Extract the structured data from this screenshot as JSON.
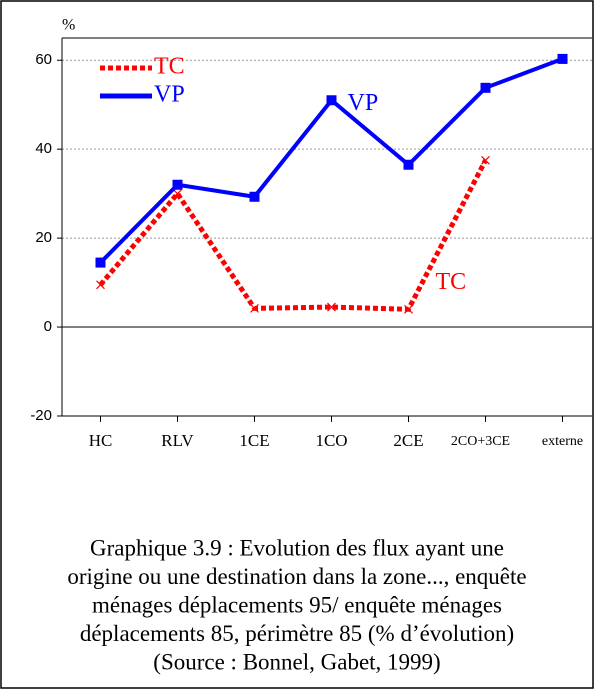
{
  "chart_data": {
    "type": "line",
    "y_label": "%",
    "categories": [
      "HC",
      "RLV",
      "1CE",
      "1CO",
      "2CE",
      "2CO+3CE",
      "externe"
    ],
    "series": [
      {
        "name": "TC",
        "color": "#ff0000",
        "values": [
          9.5,
          30,
          4.2,
          4.5,
          4.0,
          37.5,
          null
        ]
      },
      {
        "name": "VP",
        "color": "#0000ff",
        "values": [
          14.5,
          32,
          29.3,
          51,
          36.5,
          53.8,
          60.3
        ]
      }
    ],
    "annotations": [
      "VP",
      "TC"
    ],
    "ylim": [
      -20,
      65
    ],
    "yticks": [
      -20,
      0,
      20,
      40,
      60
    ],
    "grid": true,
    "caption": [
      "Graphique 3.9 : Evolution des flux ayant une",
      "origine ou une destination dans la zone..., enquête",
      "ménages déplacements 95/ enquête ménages",
      "déplacements 85, périmètre 85 (% d’évolution)",
      "(Source : Bonnel, Gabet, 1999)"
    ]
  }
}
